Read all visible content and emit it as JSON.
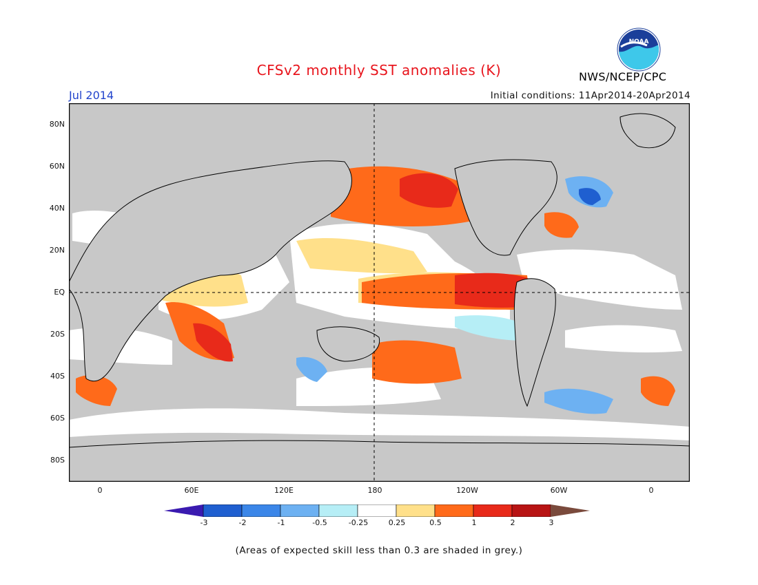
{
  "header": {
    "title": "CFSv2 monthly SST anomalies (K)",
    "agency": "NWS/NCEP/CPC",
    "valid_month": "Jul 2014",
    "initial_conditions": "Initial conditions: 11Apr2014-20Apr2014",
    "logo_text": "NOAA"
  },
  "map": {
    "lat_labels": [
      "80N",
      "60N",
      "40N",
      "20N",
      "EQ",
      "20S",
      "40S",
      "60S",
      "80S"
    ],
    "lon_labels": [
      "0",
      "60E",
      "120E",
      "180",
      "120W",
      "60W",
      "0"
    ],
    "land_color": "#c8c8c8",
    "skill_mask_color": "#c8c8c8"
  },
  "colorbar": {
    "labels": [
      "-3",
      "-2",
      "-1",
      "-0.5",
      "-0.25",
      "0.25",
      "0.5",
      "1",
      "2",
      "3"
    ],
    "colors": [
      "#3a1ab0",
      "#1f5fd0",
      "#3b86e8",
      "#6db1f2",
      "#b6eef6",
      "#ffffff",
      "#ffe08a",
      "#ff6a1a",
      "#e82a1a",
      "#b81414",
      "#7a4a3c"
    ]
  },
  "note": "(Areas of expected skill less than 0.3 are shaded in grey.)"
}
